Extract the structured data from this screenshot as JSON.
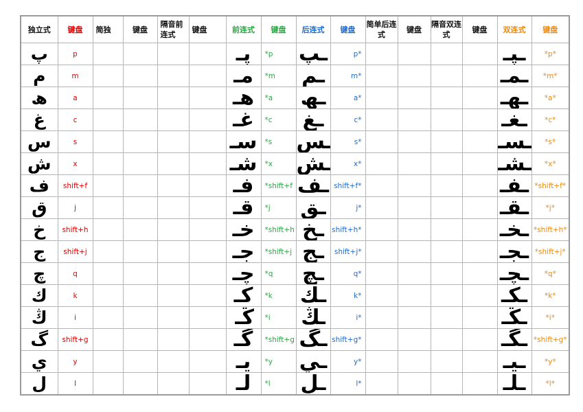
{
  "headers": {
    "isolated": "独立式",
    "key": "键盘",
    "simple": "简独",
    "gap_front": "隔音前连式",
    "front": "前连式",
    "back": "后连式",
    "simple_back": "简单后连式",
    "gap_double": "隔音双连式",
    "double": "双连式"
  },
  "rows": [
    {
      "iso": "پ",
      "key": "p",
      "front": "پـ",
      "front_key": "*p",
      "back": "ـپ",
      "back_key": "p*",
      "double": "ـپـ",
      "double_key": "*p*"
    },
    {
      "iso": "م",
      "key": "m",
      "front": "مـ",
      "front_key": "*m",
      "back": "ـم",
      "back_key": "m*",
      "double": "ـمـ",
      "double_key": "*m*"
    },
    {
      "iso": "ھ",
      "key": "a",
      "front": "ھـ",
      "front_key": "*a",
      "back": "ـھ",
      "back_key": "a*",
      "double": "ـھـ",
      "double_key": "*a*"
    },
    {
      "iso": "غ",
      "key": "c",
      "front": "غـ",
      "front_key": "*c",
      "back": "ـغ",
      "back_key": "c*",
      "double": "ـغـ",
      "double_key": "*c*"
    },
    {
      "iso": "س",
      "key": "s",
      "front": "سـ",
      "front_key": "*s",
      "back": "ـس",
      "back_key": "s*",
      "double": "ـسـ",
      "double_key": "*s*"
    },
    {
      "iso": "ش",
      "key": "x",
      "front": "شـ",
      "front_key": "*x",
      "back": "ـش",
      "back_key": "x*",
      "double": "ـشـ",
      "double_key": "*x*"
    },
    {
      "iso": "ف",
      "key": "shift+f",
      "front": "فـ",
      "front_key": "*shift+f",
      "back": "ـف",
      "back_key": "shift+f*",
      "double": "ـفـ",
      "double_key": "*shift+f*"
    },
    {
      "iso": "ق",
      "key": "j",
      "front": "قـ",
      "front_key": "*j",
      "back": "ـق",
      "back_key": "j*",
      "double": "ـقـ",
      "double_key": "*j*"
    },
    {
      "iso": "خ",
      "key": "shift+h",
      "front": "خـ",
      "front_key": "*shift+h",
      "back": "ـخ",
      "back_key": "shift+h*",
      "double": "ـخـ",
      "double_key": "*shift+h*"
    },
    {
      "iso": "ج",
      "key": "shift+j",
      "front": "جـ",
      "front_key": "*shift+j",
      "back": "ـج",
      "back_key": "shift+j*",
      "double": "ـجـ",
      "double_key": "*shift+j*"
    },
    {
      "iso": "چ",
      "key": "q",
      "front": "چـ",
      "front_key": "*q",
      "back": "ـچ",
      "back_key": "q*",
      "double": "ـچـ",
      "double_key": "*q*"
    },
    {
      "iso": "ك",
      "key": "k",
      "front": "كـ",
      "front_key": "*k",
      "back": "ـك",
      "back_key": "k*",
      "double": "ـكـ",
      "double_key": "*k*"
    },
    {
      "iso": "ڭ",
      "key": "i",
      "front": "ڭـ",
      "front_key": "*i",
      "back": "ـڭ",
      "back_key": "i*",
      "double": "ـڭـ",
      "double_key": "*i*"
    },
    {
      "iso": "گ",
      "key": "shift+g",
      "front": "گـ",
      "front_key": "*shift+g",
      "back": "ـگ",
      "back_key": "shift+g*",
      "double": "ـگـ",
      "double_key": "*shift+g*"
    },
    {
      "iso": "ي",
      "key": "y",
      "front": "يـ",
      "front_key": "*y",
      "back": "ـي",
      "back_key": "y*",
      "double": "ـيـ",
      "double_key": "*y*"
    },
    {
      "iso": "ل",
      "key": "l",
      "front": "لـ",
      "front_key": "*l",
      "back": "ـل",
      "back_key": "l*",
      "double": "ـلـ",
      "double_key": "*l*"
    }
  ]
}
